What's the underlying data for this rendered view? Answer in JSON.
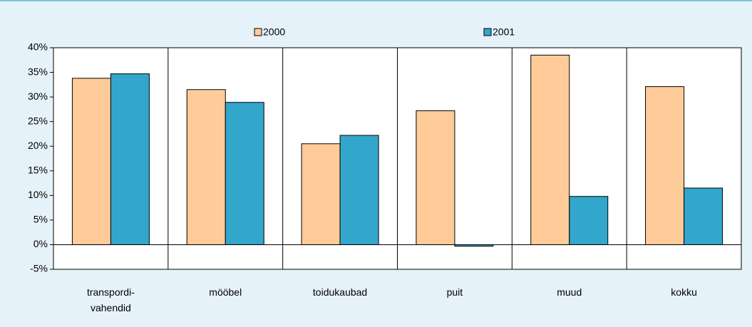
{
  "chart_data": {
    "type": "bar",
    "categories": [
      "transpordi-\nvahendid",
      "mööbel",
      "toidukaubad",
      "puit",
      "muud",
      "kokku"
    ],
    "series": [
      {
        "name": "2000",
        "color": "#FFCC99",
        "values": [
          33.8,
          31.5,
          20.5,
          27.2,
          38.5,
          32.1
        ]
      },
      {
        "name": "2001",
        "color": "#33A6CC",
        "values": [
          34.7,
          28.9,
          22.2,
          -0.3,
          9.8,
          11.5
        ]
      }
    ],
    "ylim": [
      -5,
      40
    ],
    "yticks": [
      {
        "value": -5,
        "label": "-5%"
      },
      {
        "value": 0,
        "label": "0%"
      },
      {
        "value": 5,
        "label": "5%"
      },
      {
        "value": 10,
        "label": "10%"
      },
      {
        "value": 15,
        "label": "15%"
      },
      {
        "value": 20,
        "label": "20%"
      },
      {
        "value": 25,
        "label": "25%"
      },
      {
        "value": 30,
        "label": "30%"
      },
      {
        "value": 35,
        "label": "35%"
      },
      {
        "value": 40,
        "label": "40%"
      }
    ]
  }
}
